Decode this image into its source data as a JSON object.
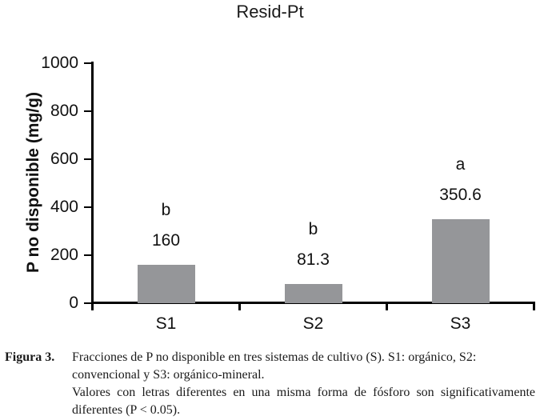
{
  "chart_title": "Resid-Pt",
  "chart_data": {
    "type": "bar",
    "title": "Resid-Pt",
    "categories": [
      "S1",
      "S2",
      "S3"
    ],
    "values": [
      160,
      81.3,
      350.6
    ],
    "value_labels": [
      "160",
      "81.3",
      "350.6"
    ],
    "significance_letters": [
      "b",
      "b",
      "a"
    ],
    "xlabel": "",
    "ylabel": "P no disponible (mg/g)",
    "ylim": [
      0,
      1000
    ],
    "ytick_step": 200,
    "ytick_labels": [
      "0",
      "200",
      "400",
      "600",
      "800",
      "1000"
    ],
    "grid": false,
    "legend": "none",
    "bar_color": "#959699",
    "axis_color": "#000000"
  },
  "caption": {
    "label": "Figura 3.",
    "paragraph1": "Fracciones de P no disponible en tres sistemas de cultivo (S). S1: orgánico, S2: convencional y S3: orgánico-mineral.",
    "paragraph2": "Valores con letras diferentes en una misma forma de fósforo son significativamente diferentes (P < 0.05)."
  }
}
